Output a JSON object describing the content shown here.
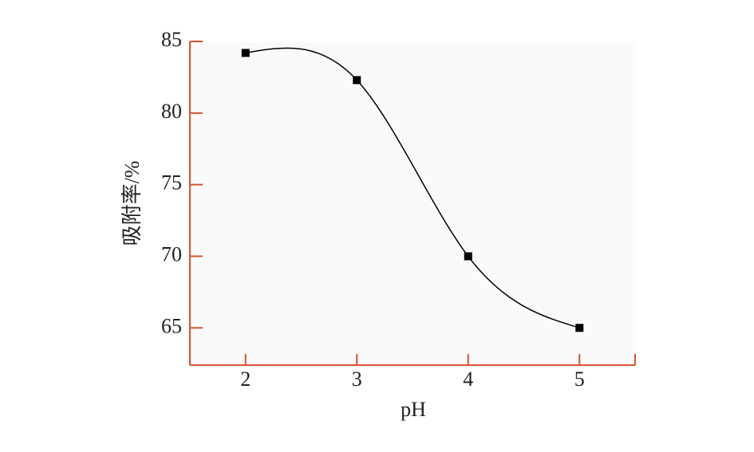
{
  "chart_data": {
    "type": "line",
    "x_label": "pH",
    "y_label": "吸附率/%",
    "x": [
      2,
      3,
      4,
      5
    ],
    "values": [
      84.2,
      82.3,
      70,
      65
    ],
    "color": "#000000",
    "axis_color": "#d9532c",
    "xlim": [
      1.5,
      5.5
    ],
    "xticks": [
      2,
      3,
      4,
      5
    ],
    "ylim": [
      62.4,
      85
    ],
    "yticks": [
      65,
      70,
      75,
      80,
      85
    ],
    "smooth": true
  }
}
